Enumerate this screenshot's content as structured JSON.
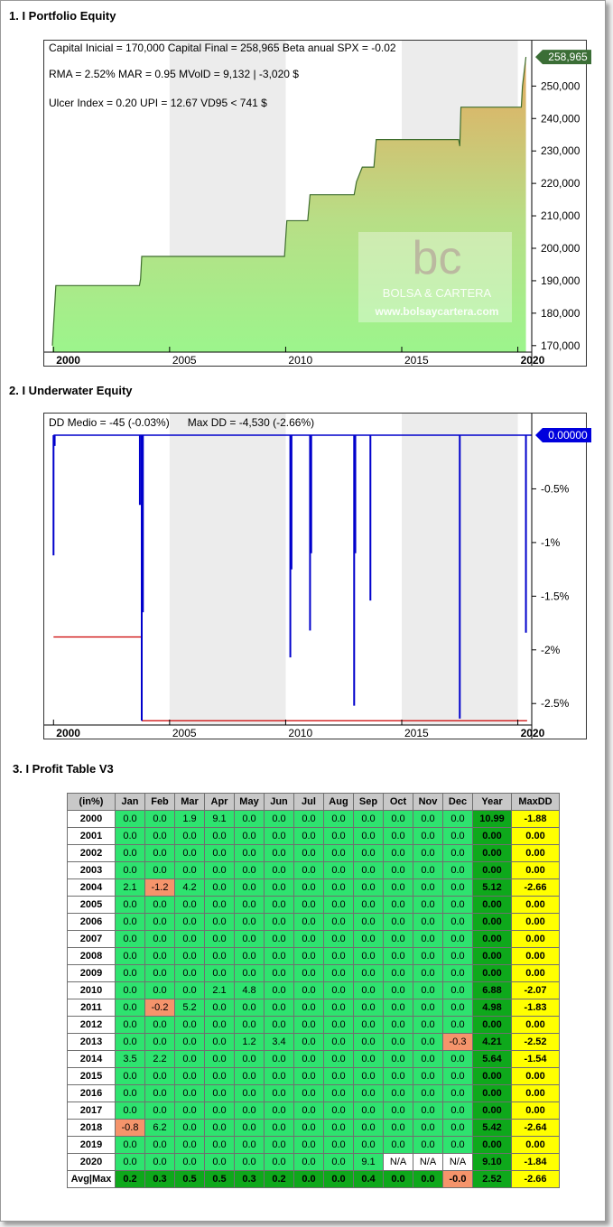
{
  "sections": {
    "equity_title": "1. I Portfolio Equity",
    "underwater_title": "2. I Underwater Equity",
    "table_title": "3. I Profit Table V3"
  },
  "equity_stats": {
    "line1": "Capital Inicial = 170,000  Capital Final = 258,965  Beta anual SPX = -0.02",
    "line2": "RMA = 2.52%  MAR = 0.95  MVolD = 9,132 | -3,020 $",
    "line3": "Ulcer Index = 0.20  UPI = 12.67  VD95 < 741 $"
  },
  "watermark": {
    "logo": "bc",
    "name": "BOLSA & CARTERA",
    "url": "www.bolsaycartera.com"
  },
  "underwater_stats": {
    "line1": "DD Medio = -45 (-0.03%)      Max DD = -4,530 (-2.66%)"
  },
  "chart_data": [
    {
      "type": "area",
      "x_ticks": [
        "2000",
        "2005",
        "2010",
        "2015",
        "2020"
      ],
      "y_ticks": [
        "170,000",
        "180,000",
        "190,000",
        "200,000",
        "210,000",
        "220,000",
        "230,000",
        "240,000",
        "250,000"
      ],
      "last_value_label": "258,965",
      "ylim": [
        168000,
        264000
      ],
      "xlim": [
        1999.6,
        2020.6
      ],
      "points": [
        [
          1999.95,
          170000
        ],
        [
          2000.1,
          188500
        ],
        [
          2003.7,
          188500
        ],
        [
          2003.75,
          190500
        ],
        [
          2003.8,
          197500
        ],
        [
          2009.95,
          197500
        ],
        [
          2010.05,
          208500
        ],
        [
          2010.95,
          208500
        ],
        [
          2011.05,
          216500
        ],
        [
          2012.95,
          216500
        ],
        [
          2013.05,
          220500
        ],
        [
          2013.3,
          225000
        ],
        [
          2013.8,
          225000
        ],
        [
          2013.9,
          233500
        ],
        [
          2017.45,
          233500
        ],
        [
          2017.5,
          231500
        ],
        [
          2017.55,
          243500
        ],
        [
          2020.15,
          243500
        ],
        [
          2020.2,
          250000
        ],
        [
          2020.35,
          258965
        ]
      ],
      "shading": [
        {
          "from": 2005,
          "to": 2010
        },
        {
          "from": 2015,
          "to": 2020
        }
      ],
      "colors": {
        "area_bottom": "#9cf58c",
        "area_top": "#e6a960",
        "line": "#3f6e2e",
        "label_bg": "#3b6e36"
      }
    },
    {
      "type": "line",
      "x_ticks": [
        "2000",
        "2005",
        "2010",
        "2015",
        "2020"
      ],
      "y_ticks": [
        "-0.5%",
        "-1%",
        "-1.5%",
        "-2%",
        "-2.5%"
      ],
      "last_value_label": "0.00000",
      "ylim": [
        -2.7,
        0.0
      ],
      "xlim": [
        1999.6,
        2020.6
      ],
      "drawdown_spikes": [
        [
          2000.0,
          -1.12
        ],
        [
          2000.05,
          -0.1
        ],
        [
          2003.72,
          -0.65
        ],
        [
          2003.8,
          -2.66
        ],
        [
          2003.85,
          -1.65
        ],
        [
          2010.2,
          -2.07
        ],
        [
          2010.25,
          -1.25
        ],
        [
          2011.05,
          -1.82
        ],
        [
          2011.1,
          -1.1
        ],
        [
          2012.95,
          -2.52
        ],
        [
          2013.0,
          -1.1
        ],
        [
          2013.65,
          -1.54
        ],
        [
          2017.5,
          -2.64
        ],
        [
          2020.35,
          -1.84
        ]
      ],
      "max_dd_steps": [
        {
          "from": 2000.0,
          "to": 2003.8,
          "value": -1.88
        },
        {
          "from": 2003.8,
          "to": 2020.4,
          "value": -2.66
        }
      ],
      "shading": [
        {
          "from": 2005,
          "to": 2010
        },
        {
          "from": 2015,
          "to": 2020
        }
      ],
      "colors": {
        "spike": "#0000cc",
        "max_dd": "#cc0000",
        "label_bg": "#0000dd"
      }
    },
    {
      "type": "table",
      "headers": [
        "(in%)",
        "Jan",
        "Feb",
        "Mar",
        "Apr",
        "May",
        "Jun",
        "Jul",
        "Aug",
        "Sep",
        "Oct",
        "Nov",
        "Dec",
        "Year",
        "MaxDD"
      ],
      "rows": [
        [
          "2000",
          "0.0",
          "0.0",
          "1.9",
          "9.1",
          "0.0",
          "0.0",
          "0.0",
          "0.0",
          "0.0",
          "0.0",
          "0.0",
          "0.0",
          "10.99",
          "-1.88"
        ],
        [
          "2001",
          "0.0",
          "0.0",
          "0.0",
          "0.0",
          "0.0",
          "0.0",
          "0.0",
          "0.0",
          "0.0",
          "0.0",
          "0.0",
          "0.0",
          "0.00",
          "0.00"
        ],
        [
          "2002",
          "0.0",
          "0.0",
          "0.0",
          "0.0",
          "0.0",
          "0.0",
          "0.0",
          "0.0",
          "0.0",
          "0.0",
          "0.0",
          "0.0",
          "0.00",
          "0.00"
        ],
        [
          "2003",
          "0.0",
          "0.0",
          "0.0",
          "0.0",
          "0.0",
          "0.0",
          "0.0",
          "0.0",
          "0.0",
          "0.0",
          "0.0",
          "0.0",
          "0.00",
          "0.00"
        ],
        [
          "2004",
          "2.1",
          "-1.2",
          "4.2",
          "0.0",
          "0.0",
          "0.0",
          "0.0",
          "0.0",
          "0.0",
          "0.0",
          "0.0",
          "0.0",
          "5.12",
          "-2.66"
        ],
        [
          "2005",
          "0.0",
          "0.0",
          "0.0",
          "0.0",
          "0.0",
          "0.0",
          "0.0",
          "0.0",
          "0.0",
          "0.0",
          "0.0",
          "0.0",
          "0.00",
          "0.00"
        ],
        [
          "2006",
          "0.0",
          "0.0",
          "0.0",
          "0.0",
          "0.0",
          "0.0",
          "0.0",
          "0.0",
          "0.0",
          "0.0",
          "0.0",
          "0.0",
          "0.00",
          "0.00"
        ],
        [
          "2007",
          "0.0",
          "0.0",
          "0.0",
          "0.0",
          "0.0",
          "0.0",
          "0.0",
          "0.0",
          "0.0",
          "0.0",
          "0.0",
          "0.0",
          "0.00",
          "0.00"
        ],
        [
          "2008",
          "0.0",
          "0.0",
          "0.0",
          "0.0",
          "0.0",
          "0.0",
          "0.0",
          "0.0",
          "0.0",
          "0.0",
          "0.0",
          "0.0",
          "0.00",
          "0.00"
        ],
        [
          "2009",
          "0.0",
          "0.0",
          "0.0",
          "0.0",
          "0.0",
          "0.0",
          "0.0",
          "0.0",
          "0.0",
          "0.0",
          "0.0",
          "0.0",
          "0.00",
          "0.00"
        ],
        [
          "2010",
          "0.0",
          "0.0",
          "0.0",
          "2.1",
          "4.8",
          "0.0",
          "0.0",
          "0.0",
          "0.0",
          "0.0",
          "0.0",
          "0.0",
          "6.88",
          "-2.07"
        ],
        [
          "2011",
          "0.0",
          "-0.2",
          "5.2",
          "0.0",
          "0.0",
          "0.0",
          "0.0",
          "0.0",
          "0.0",
          "0.0",
          "0.0",
          "0.0",
          "4.98",
          "-1.83"
        ],
        [
          "2012",
          "0.0",
          "0.0",
          "0.0",
          "0.0",
          "0.0",
          "0.0",
          "0.0",
          "0.0",
          "0.0",
          "0.0",
          "0.0",
          "0.0",
          "0.00",
          "0.00"
        ],
        [
          "2013",
          "0.0",
          "0.0",
          "0.0",
          "0.0",
          "1.2",
          "3.4",
          "0.0",
          "0.0",
          "0.0",
          "0.0",
          "0.0",
          "-0.3",
          "4.21",
          "-2.52"
        ],
        [
          "2014",
          "3.5",
          "2.2",
          "0.0",
          "0.0",
          "0.0",
          "0.0",
          "0.0",
          "0.0",
          "0.0",
          "0.0",
          "0.0",
          "0.0",
          "5.64",
          "-1.54"
        ],
        [
          "2015",
          "0.0",
          "0.0",
          "0.0",
          "0.0",
          "0.0",
          "0.0",
          "0.0",
          "0.0",
          "0.0",
          "0.0",
          "0.0",
          "0.0",
          "0.00",
          "0.00"
        ],
        [
          "2016",
          "0.0",
          "0.0",
          "0.0",
          "0.0",
          "0.0",
          "0.0",
          "0.0",
          "0.0",
          "0.0",
          "0.0",
          "0.0",
          "0.0",
          "0.00",
          "0.00"
        ],
        [
          "2017",
          "0.0",
          "0.0",
          "0.0",
          "0.0",
          "0.0",
          "0.0",
          "0.0",
          "0.0",
          "0.0",
          "0.0",
          "0.0",
          "0.0",
          "0.00",
          "0.00"
        ],
        [
          "2018",
          "-0.8",
          "6.2",
          "0.0",
          "0.0",
          "0.0",
          "0.0",
          "0.0",
          "0.0",
          "0.0",
          "0.0",
          "0.0",
          "0.0",
          "5.42",
          "-2.64"
        ],
        [
          "2019",
          "0.0",
          "0.0",
          "0.0",
          "0.0",
          "0.0",
          "0.0",
          "0.0",
          "0.0",
          "0.0",
          "0.0",
          "0.0",
          "0.0",
          "0.00",
          "0.00"
        ],
        [
          "2020",
          "0.0",
          "0.0",
          "0.0",
          "0.0",
          "0.0",
          "0.0",
          "0.0",
          "0.0",
          "9.1",
          "N/A",
          "N/A",
          "N/A",
          "9.10",
          "-1.84"
        ]
      ],
      "footer": [
        "Avg|Max",
        "0.2",
        "0.3",
        "0.5",
        "0.5",
        "0.3",
        "0.2",
        "0.0",
        "0.0",
        "0.4",
        "0.0",
        "0.0",
        "-0.0",
        "2.52",
        "-2.66"
      ],
      "colors": {
        "header": "#c8c8c8",
        "month": "#2ee36f",
        "negative": "#f5946b",
        "year": "#0ea81b",
        "maxdd": "#ffff00"
      }
    }
  ]
}
